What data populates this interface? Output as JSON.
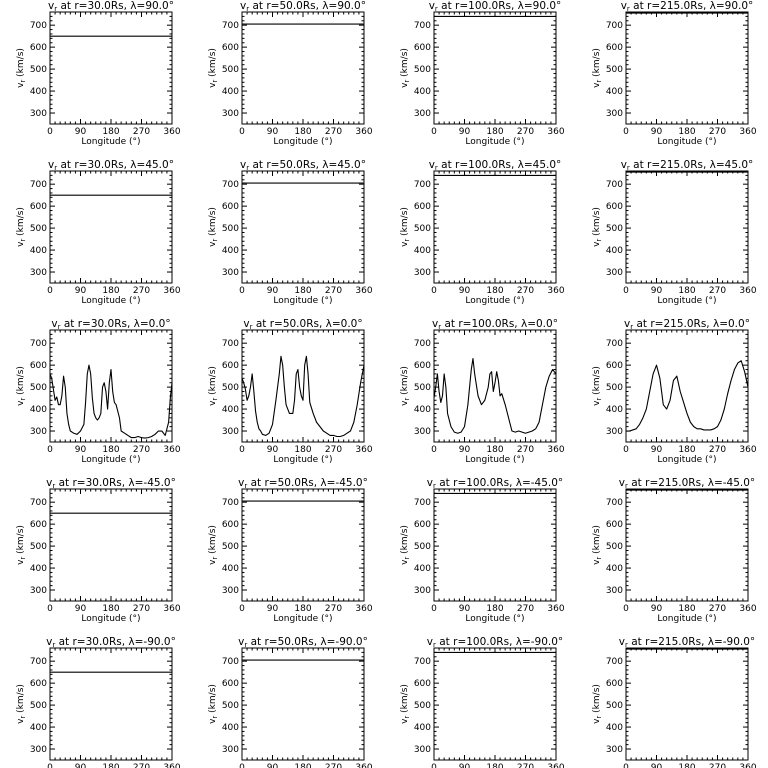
{
  "chart_data": [
    {
      "type": "line",
      "title": "v_r at r=30.0Rs, λ=90.0°",
      "series": [
        {
          "x": [
            0,
            360
          ],
          "y": [
            650,
            650
          ]
        }
      ],
      "xlim": [
        0,
        360
      ],
      "ylim": [
        250,
        760
      ]
    },
    {
      "type": "line",
      "title": "v_r at r=50.0Rs, λ=90.0°",
      "series": [
        {
          "x": [
            0,
            360
          ],
          "y": [
            705,
            705
          ]
        }
      ],
      "xlim": [
        0,
        360
      ],
      "ylim": [
        250,
        760
      ]
    },
    {
      "type": "line",
      "title": "v_r at r=100.0Rs, λ=90.0°",
      "series": [
        {
          "x": [
            0,
            360
          ],
          "y": [
            740,
            740
          ]
        }
      ],
      "xlim": [
        0,
        360
      ],
      "ylim": [
        250,
        760
      ]
    },
    {
      "type": "line",
      "title": "v_r at r=215.0Rs, λ=90.0°",
      "series": [
        {
          "x": [
            0,
            360
          ],
          "y": [
            755,
            755
          ]
        }
      ],
      "xlim": [
        0,
        360
      ],
      "ylim": [
        250,
        760
      ]
    },
    {
      "type": "line",
      "title": "v_r at r=30.0Rs, λ=45.0°",
      "series": [
        {
          "x": [
            0,
            360
          ],
          "y": [
            650,
            650
          ]
        }
      ],
      "xlim": [
        0,
        360
      ],
      "ylim": [
        250,
        760
      ]
    },
    {
      "type": "line",
      "title": "v_r at r=50.0Rs, λ=45.0°",
      "series": [
        {
          "x": [
            0,
            360
          ],
          "y": [
            705,
            705
          ]
        }
      ],
      "xlim": [
        0,
        360
      ],
      "ylim": [
        250,
        760
      ]
    },
    {
      "type": "line",
      "title": "v_r at r=100.0Rs, λ=45.0°",
      "series": [
        {
          "x": [
            0,
            360
          ],
          "y": [
            740,
            740
          ]
        }
      ],
      "xlim": [
        0,
        360
      ],
      "ylim": [
        250,
        760
      ]
    },
    {
      "type": "line",
      "title": "v_r at r=215.0Rs, λ=45.0°",
      "series": [
        {
          "x": [
            0,
            360
          ],
          "y": [
            755,
            755
          ]
        }
      ],
      "xlim": [
        0,
        360
      ],
      "ylim": [
        250,
        760
      ]
    },
    {
      "type": "line",
      "title": "v_r at r=30.0Rs, λ=0.0°",
      "series": [
        {
          "x": [
            0,
            5,
            10,
            15,
            20,
            25,
            30,
            35,
            40,
            45,
            50,
            55,
            60,
            70,
            80,
            90,
            100,
            105,
            110,
            115,
            120,
            125,
            130,
            135,
            140,
            145,
            150,
            155,
            160,
            165,
            170,
            175,
            180,
            185,
            190,
            195,
            200,
            205,
            210,
            220,
            230,
            240,
            250,
            260,
            270,
            280,
            290,
            300,
            310,
            320,
            330,
            340,
            350,
            355,
            360
          ],
          "y": [
            560,
            540,
            490,
            440,
            455,
            420,
            420,
            460,
            550,
            500,
            380,
            330,
            300,
            290,
            285,
            300,
            330,
            430,
            560,
            600,
            560,
            450,
            380,
            360,
            350,
            360,
            380,
            500,
            520,
            480,
            400,
            520,
            580,
            480,
            430,
            420,
            390,
            360,
            300,
            290,
            280,
            270,
            270,
            275,
            270,
            268,
            270,
            275,
            285,
            300,
            300,
            280,
            340,
            450,
            520
          ]
        }
      ],
      "xlim": [
        0,
        360
      ],
      "ylim": [
        250,
        760
      ]
    },
    {
      "type": "line",
      "title": "v_r at r=50.0Rs, λ=0.0°",
      "series": [
        {
          "x": [
            0,
            5,
            10,
            15,
            20,
            25,
            30,
            35,
            40,
            45,
            50,
            55,
            60,
            70,
            80,
            90,
            100,
            110,
            115,
            120,
            125,
            130,
            140,
            150,
            155,
            160,
            165,
            170,
            175,
            180,
            185,
            190,
            195,
            200,
            210,
            220,
            230,
            240,
            250,
            260,
            270,
            280,
            290,
            300,
            310,
            320,
            330,
            340,
            350,
            360
          ],
          "y": [
            540,
            520,
            490,
            440,
            460,
            500,
            560,
            480,
            390,
            340,
            310,
            300,
            285,
            280,
            290,
            330,
            440,
            560,
            640,
            600,
            500,
            420,
            380,
            380,
            440,
            560,
            580,
            500,
            460,
            440,
            600,
            640,
            560,
            430,
            380,
            340,
            320,
            300,
            290,
            280,
            280,
            275,
            275,
            280,
            290,
            300,
            340,
            420,
            520,
            600
          ]
        }
      ],
      "xlim": [
        0,
        360
      ],
      "ylim": [
        250,
        760
      ]
    },
    {
      "type": "line",
      "title": "v_r at r=100.0Rs, λ=0.0°",
      "series": [
        {
          "x": [
            0,
            5,
            10,
            15,
            20,
            25,
            30,
            35,
            40,
            50,
            60,
            70,
            80,
            90,
            100,
            110,
            115,
            120,
            130,
            140,
            150,
            160,
            165,
            170,
            175,
            180,
            185,
            190,
            195,
            200,
            210,
            220,
            230,
            240,
            250,
            260,
            270,
            280,
            290,
            300,
            310,
            320,
            330,
            340,
            350,
            360
          ],
          "y": [
            450,
            500,
            560,
            480,
            430,
            460,
            560,
            500,
            380,
            320,
            295,
            290,
            295,
            320,
            420,
            580,
            630,
            560,
            460,
            420,
            440,
            500,
            560,
            570,
            480,
            520,
            570,
            530,
            460,
            470,
            420,
            360,
            300,
            295,
            300,
            295,
            290,
            295,
            300,
            310,
            340,
            420,
            500,
            550,
            580,
            560
          ]
        }
      ],
      "xlim": [
        0,
        360
      ],
      "ylim": [
        250,
        760
      ]
    },
    {
      "type": "line",
      "title": "v_r at r=215.0Rs, λ=0.0°",
      "series": [
        {
          "x": [
            0,
            10,
            20,
            30,
            40,
            50,
            60,
            70,
            80,
            90,
            100,
            110,
            120,
            130,
            140,
            150,
            160,
            170,
            180,
            190,
            200,
            210,
            220,
            230,
            240,
            250,
            260,
            270,
            280,
            290,
            300,
            310,
            320,
            330,
            340,
            350,
            360
          ],
          "y": [
            300,
            300,
            305,
            310,
            330,
            360,
            400,
            480,
            560,
            600,
            540,
            420,
            400,
            440,
            530,
            550,
            480,
            430,
            380,
            340,
            320,
            310,
            310,
            305,
            305,
            305,
            310,
            320,
            350,
            400,
            470,
            530,
            580,
            610,
            620,
            570,
            500
          ]
        }
      ],
      "xlim": [
        0,
        360
      ],
      "ylim": [
        250,
        760
      ]
    },
    {
      "type": "line",
      "title": "v_r at r=30.0Rs, λ=-45.0°",
      "series": [
        {
          "x": [
            0,
            360
          ],
          "y": [
            650,
            650
          ]
        }
      ],
      "xlim": [
        0,
        360
      ],
      "ylim": [
        250,
        760
      ]
    },
    {
      "type": "line",
      "title": "v_r at r=50.0Rs, λ=-45.0°",
      "series": [
        {
          "x": [
            0,
            360
          ],
          "y": [
            705,
            705
          ]
        }
      ],
      "xlim": [
        0,
        360
      ],
      "ylim": [
        250,
        760
      ]
    },
    {
      "type": "line",
      "title": "v_r at r=100.0Rs, λ=-45.0°",
      "series": [
        {
          "x": [
            0,
            360
          ],
          "y": [
            740,
            740
          ]
        }
      ],
      "xlim": [
        0,
        360
      ],
      "ylim": [
        250,
        760
      ]
    },
    {
      "type": "line",
      "title": "v_r at r=215.0Rs, λ=-45.0°",
      "series": [
        {
          "x": [
            0,
            360
          ],
          "y": [
            755,
            755
          ]
        }
      ],
      "xlim": [
        0,
        360
      ],
      "ylim": [
        250,
        760
      ]
    },
    {
      "type": "line",
      "title": "v_r at r=30.0Rs, λ=-90.0°",
      "series": [
        {
          "x": [
            0,
            360
          ],
          "y": [
            650,
            650
          ]
        }
      ],
      "xlim": [
        0,
        360
      ],
      "ylim": [
        250,
        760
      ]
    },
    {
      "type": "line",
      "title": "v_r at r=50.0Rs, λ=-90.0°",
      "series": [
        {
          "x": [
            0,
            360
          ],
          "y": [
            705,
            705
          ]
        }
      ],
      "xlim": [
        0,
        360
      ],
      "ylim": [
        250,
        760
      ]
    },
    {
      "type": "line",
      "title": "v_r at r=100.0Rs, λ=-90.0°",
      "series": [
        {
          "x": [
            0,
            360
          ],
          "y": [
            740,
            740
          ]
        }
      ],
      "xlim": [
        0,
        360
      ],
      "ylim": [
        250,
        760
      ]
    },
    {
      "type": "line",
      "title": "v_r at r=215.0Rs, λ=-90.0°",
      "series": [
        {
          "x": [
            0,
            360
          ],
          "y": [
            755,
            755
          ]
        }
      ],
      "xlim": [
        0,
        360
      ],
      "ylim": [
        250,
        760
      ]
    }
  ],
  "shared": {
    "xlabel": "Longitude (°)",
    "ylabel": "v_r (km/s)",
    "xticks": [
      0,
      90,
      180,
      270,
      360
    ],
    "yticks": [
      300,
      400,
      500,
      600,
      700
    ],
    "line_color": "#000000",
    "background": "#ffffff"
  }
}
